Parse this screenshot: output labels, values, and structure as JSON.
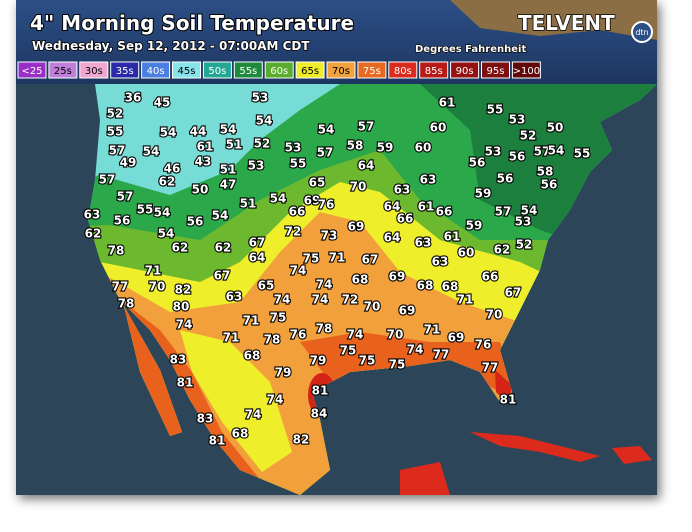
{
  "header": {
    "title": "4\" Morning Soil Temperature",
    "subtitle": "Wednesday, Sep 12, 2012 - 07:00AM CDT",
    "units": "Degrees Fahrenheit",
    "brand": "TELVENT",
    "brand_badge": "dtn"
  },
  "legend": [
    {
      "label": "<25",
      "color": "#9a2fc8"
    },
    {
      "label": "25s",
      "color": "#c07fd8"
    },
    {
      "label": "30s",
      "color": "#f0a8d0"
    },
    {
      "label": "35s",
      "color": "#2a2aa8"
    },
    {
      "label": "40s",
      "color": "#4a7ee0"
    },
    {
      "label": "45s",
      "color": "#86e4ea"
    },
    {
      "label": "50s",
      "color": "#22a894"
    },
    {
      "label": "55s",
      "color": "#1f8a3c"
    },
    {
      "label": "60s",
      "color": "#5aac2c"
    },
    {
      "label": "65s",
      "color": "#eeee2a"
    },
    {
      "label": "70s",
      "color": "#f2a23c"
    },
    {
      "label": "75s",
      "color": "#e86a22"
    },
    {
      "label": "80s",
      "color": "#dc2a1c"
    },
    {
      "label": "85s",
      "color": "#b81a18"
    },
    {
      "label": "90s",
      "color": "#961212"
    },
    {
      "label": "95s",
      "color": "#7e1010"
    },
    {
      "label": ">100",
      "color": "#620808"
    }
  ],
  "stations": [
    36,
    45,
    53,
    61,
    55,
    53,
    50,
    52,
    54,
    54,
    57,
    60,
    52,
    55,
    54,
    44,
    54,
    57,
    54,
    61,
    51,
    52,
    53,
    57,
    58,
    59,
    60,
    53,
    56,
    57,
    54,
    55,
    49,
    46,
    43,
    51,
    53,
    55,
    64,
    56,
    57,
    62,
    50,
    47,
    65,
    70,
    63,
    63,
    56,
    58,
    56,
    57,
    51,
    54,
    69,
    59,
    63,
    56,
    55,
    54,
    56,
    54,
    66,
    76,
    64,
    66,
    61,
    66,
    57,
    54,
    62,
    54,
    72,
    73,
    69,
    64,
    59,
    53,
    78,
    62,
    62,
    67,
    63,
    61,
    62,
    52,
    64,
    75,
    71,
    67,
    63,
    60,
    71,
    74,
    68,
    69,
    66,
    77,
    70,
    67,
    65,
    74,
    68,
    68,
    67,
    82,
    78,
    80,
    63,
    74,
    74,
    72,
    70,
    71,
    69,
    70,
    74,
    71,
    75,
    78,
    74,
    70,
    71,
    69,
    71,
    78,
    76,
    75,
    74,
    76,
    83,
    68,
    79,
    75,
    75,
    77,
    81,
    79,
    77,
    81,
    74,
    84,
    81,
    83,
    74,
    81,
    68,
    82
  ]
}
